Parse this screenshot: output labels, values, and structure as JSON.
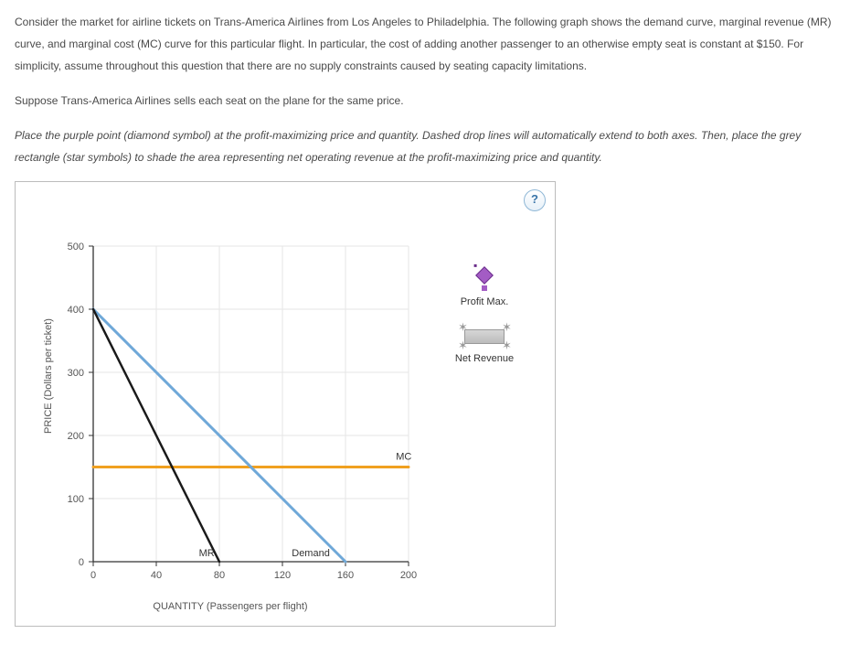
{
  "prose": {
    "p1": "Consider the market for airline tickets on Trans-America Airlines from Los Angeles to Philadelphia. The following graph shows the demand curve, marginal revenue (MR) curve, and marginal cost (MC) curve for this particular flight. In particular, the cost of adding another passenger to an otherwise empty seat is constant at $150. For simplicity, assume throughout this question that there are no supply constraints caused by seating capacity limitations.",
    "p2": "Suppose Trans-America Airlines sells each seat on the plane for the same price.",
    "p3": "Place the purple point (diamond symbol) at the profit-maximizing price and quantity. Dashed drop lines will automatically extend to both axes. Then, place the grey rectangle (star symbols) to shade the area representing net operating revenue at the profit-maximizing price and quantity."
  },
  "help": {
    "label": "?"
  },
  "legend": {
    "profit_max": "Profit Max.",
    "net_revenue": "Net Revenue"
  },
  "chart": {
    "type": "line",
    "background_color": "#ffffff",
    "grid_color": "#e6e6e6",
    "axis_color": "#333333",
    "x": {
      "label": "QUANTITY (Passengers per flight)",
      "min": 0,
      "max": 200,
      "tick_step": 40,
      "tick_labels": [
        "0",
        "40",
        "80",
        "120",
        "160",
        "200"
      ]
    },
    "y": {
      "label": "PRICE (Dollars per ticket)",
      "min": 0,
      "max": 500,
      "tick_step": 100,
      "tick_labels": [
        "0",
        "100",
        "200",
        "300",
        "400",
        "500"
      ]
    },
    "tick_fontsize": 11,
    "series": {
      "demand": {
        "label": "Demand",
        "color": "#6fa8d8",
        "width": 3,
        "points": [
          [
            0,
            400
          ],
          [
            160,
            0
          ]
        ]
      },
      "mr": {
        "label": "MR",
        "color": "#1a1a1a",
        "width": 2.5,
        "points": [
          [
            0,
            400
          ],
          [
            80,
            0
          ]
        ]
      },
      "mc": {
        "label": "MC",
        "color": "#f0a020",
        "width": 3,
        "points": [
          [
            0,
            150
          ],
          [
            200,
            150
          ]
        ]
      }
    },
    "label_fontsize": 11
  }
}
